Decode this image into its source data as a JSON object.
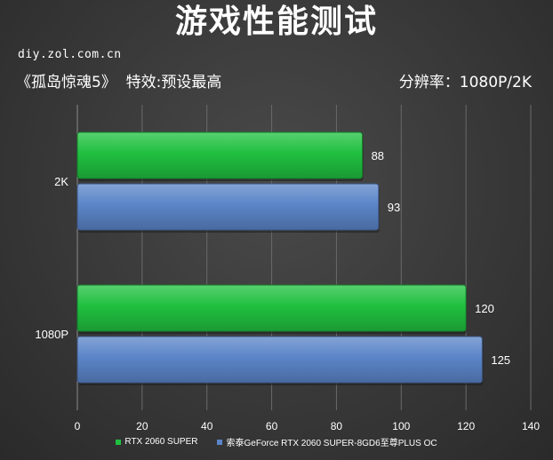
{
  "header": {
    "title": "游戏性能测试",
    "source": "diy.zol.com.cn",
    "game": "《孤岛惊魂5》",
    "effect": "特效:预设最高",
    "resolution": "分辨率：1080P/2K"
  },
  "colors": {
    "series_green": "#20c040",
    "series_blue": "#5b85c8"
  },
  "chart_data": {
    "type": "bar",
    "orientation": "horizontal",
    "categories": [
      "2K",
      "1080P"
    ],
    "series": [
      {
        "name": "RTX 2060 SUPER",
        "values": [
          88,
          120
        ]
      },
      {
        "name": "索泰GeForce RTX 2060 SUPER-8GD6至尊PLUS OC",
        "values": [
          93,
          125
        ]
      }
    ],
    "xlim": [
      0,
      140
    ],
    "xticks": [
      0,
      20,
      40,
      60,
      80,
      100,
      120,
      140
    ],
    "grid": true,
    "legend_position": "bottom"
  }
}
